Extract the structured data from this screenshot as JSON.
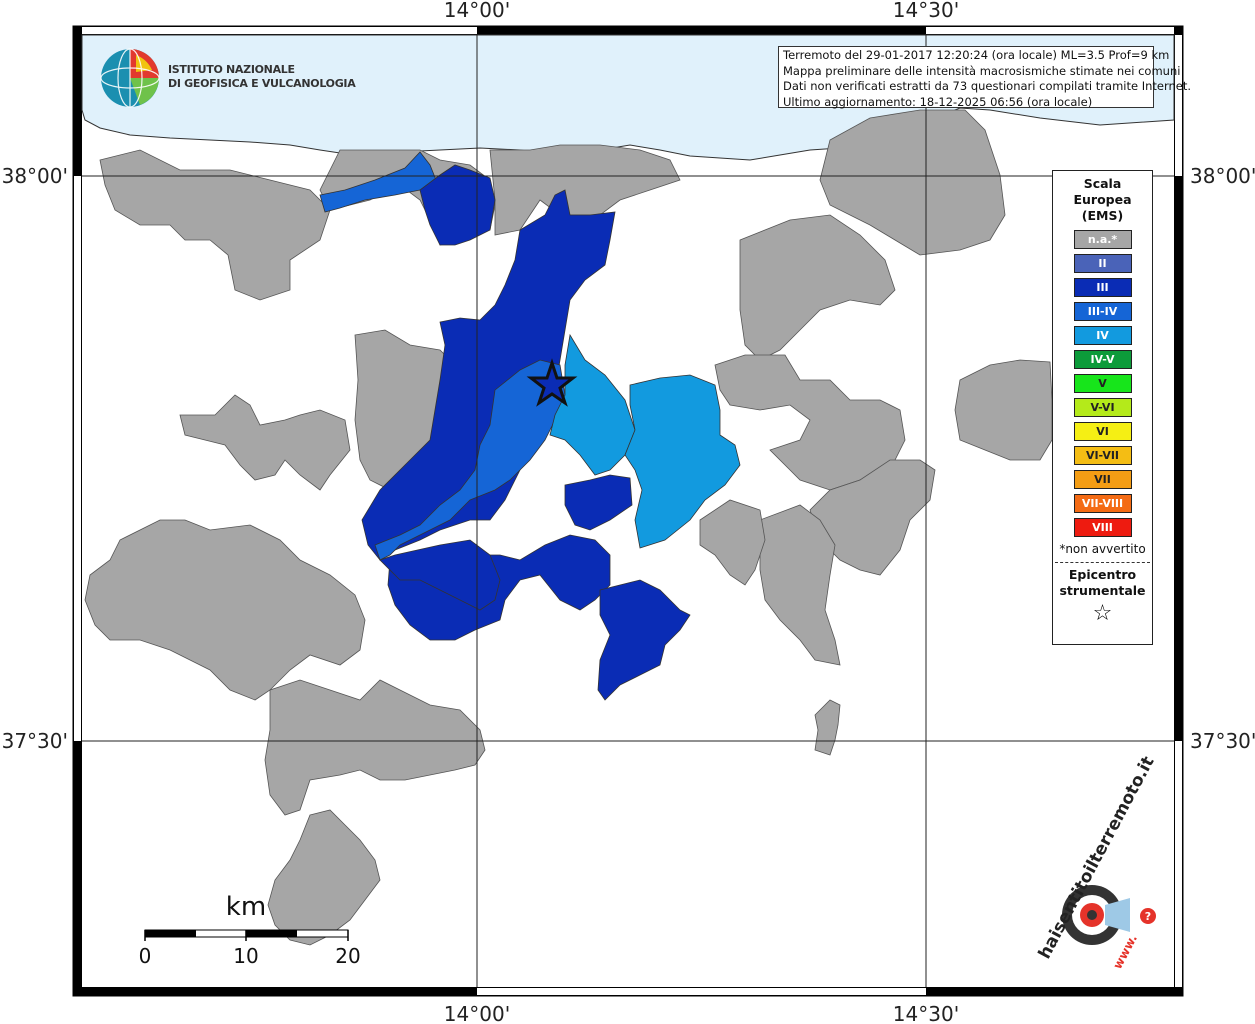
{
  "info": {
    "line1": "Terremoto del 29-01-2017 12:20:24 (ora locale) ML=3.5 Prof=9 km",
    "line2": "Mappa preliminare delle intensità macrosismiche stimate nei comuni",
    "line3": "Dati non verificati estratti da 73 questionari compilati tramite Internet.",
    "line4": "Ultimo aggiornamento: 18-12-2025 06:56 (ora locale)"
  },
  "logo": {
    "line1": "ISTITUTO NAZIONALE",
    "line2": "DI GEOFISICA E VULCANOLOGIA"
  },
  "coords": {
    "top_left": "14°00'",
    "top_right": "14°30'",
    "bottom_left": "14°00'",
    "bottom_right": "14°30'",
    "left_upper": "38°00'",
    "left_lower": "37°30'",
    "right_upper": "38°00'",
    "right_lower": "37°30'"
  },
  "legend": {
    "title1": "Scala",
    "title2": "Europea",
    "title3": "(EMS)",
    "items": [
      {
        "label": "n.a.*",
        "color": "#a6a6a6"
      },
      {
        "label": "II",
        "color": "#4a63b8"
      },
      {
        "label": "III",
        "color": "#0a2cb5"
      },
      {
        "label": "III-IV",
        "color": "#1565d6"
      },
      {
        "label": "IV",
        "color": "#129adf"
      },
      {
        "label": "IV-V",
        "color": "#0c9b3a"
      },
      {
        "label": "V",
        "color": "#17e51b"
      },
      {
        "label": "V-VI",
        "color": "#b4ea1a"
      },
      {
        "label": "VI",
        "color": "#f5ef14"
      },
      {
        "label": "VI-VII",
        "color": "#f4bd14"
      },
      {
        "label": "VII",
        "color": "#f49d14"
      },
      {
        "label": "VII-VIII",
        "color": "#f46b14"
      },
      {
        "label": "VIII",
        "color": "#ee1b10"
      }
    ],
    "note": "*non avvertito",
    "epicenter1": "Epicentro",
    "epicenter2": "strumentale",
    "epicenter_symbol": "☆"
  },
  "scale_bar": {
    "unit": "km",
    "ticks": [
      "0",
      "10",
      "20"
    ]
  },
  "watermark": {
    "text": "haisentitoilterremoto.it",
    "url": "www."
  },
  "colors": {
    "sea": "#e0f1fb",
    "na": "#a6a6a6",
    "III": "#0a2cb5",
    "III_IV": "#1565d6",
    "IV": "#129adf"
  }
}
